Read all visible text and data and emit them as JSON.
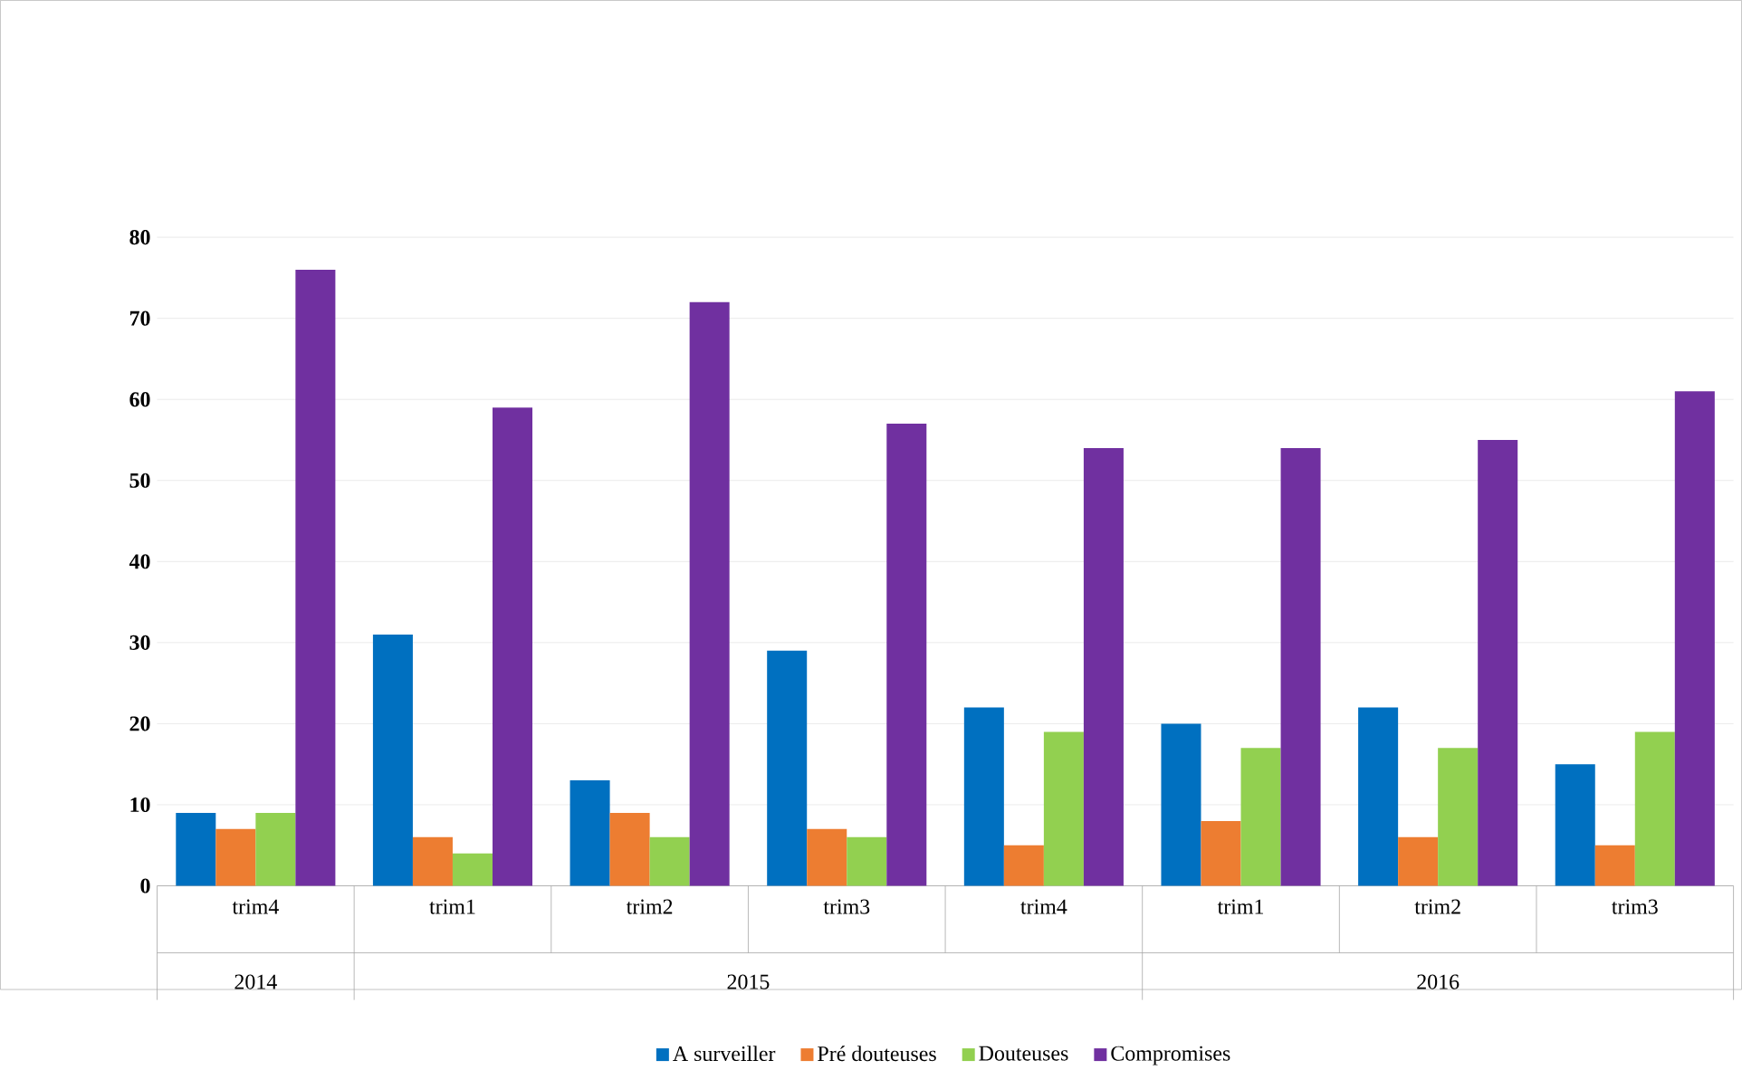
{
  "chart_data": {
    "type": "bar",
    "categories": [
      "trim4",
      "trim1",
      "trim2",
      "trim3",
      "trim4",
      "trim1",
      "trim2",
      "trim3"
    ],
    "annotations": [
      "2014",
      "2015",
      "2016"
    ],
    "series": [
      {
        "name": "A surveiller",
        "color": "#0070c0",
        "values": [
          9,
          31,
          13,
          29,
          22,
          20,
          22,
          15
        ]
      },
      {
        "name": "Pré douteuses",
        "color": "#ed7d31",
        "values": [
          7,
          6,
          9,
          7,
          5,
          8,
          6,
          5
        ]
      },
      {
        "name": "Douteuses",
        "color": "#92d050",
        "values": [
          9,
          4,
          6,
          6,
          19,
          17,
          17,
          19
        ]
      },
      {
        "name": "Compromises",
        "color": "#7030a0",
        "values": [
          76,
          59,
          72,
          57,
          54,
          54,
          55,
          61
        ]
      }
    ],
    "ylim": [
      0,
      80
    ],
    "yticks": [
      0,
      10,
      20,
      30,
      40,
      50,
      60,
      70,
      80
    ],
    "grid": "y",
    "legend": "bottom"
  }
}
